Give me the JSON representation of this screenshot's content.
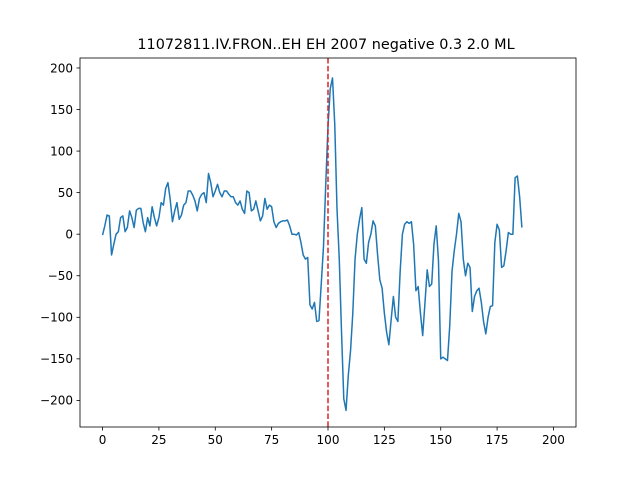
{
  "chart_data": {
    "type": "line",
    "title": "11072811.IV.FRON..EH EH 2007 negative 0.3 2.0 ML",
    "xlabel": "",
    "ylabel": "",
    "xlim": [
      -10,
      210
    ],
    "ylim": [
      -232,
      212
    ],
    "xticks": [
      0,
      25,
      50,
      75,
      100,
      125,
      150,
      175,
      200
    ],
    "yticks": [
      -200,
      -150,
      -100,
      -50,
      0,
      50,
      100,
      150,
      200
    ],
    "grid": false,
    "series_color": "#1f77b4",
    "marker": {
      "x": 100,
      "style": "dashed",
      "color": "#d62728"
    },
    "series": [
      {
        "values": [
          -1,
          10,
          23,
          22,
          -25,
          -12,
          0,
          3,
          20,
          22,
          3,
          8,
          28,
          20,
          8,
          29,
          31,
          31,
          14,
          3,
          20,
          10,
          33,
          20,
          10,
          20,
          38,
          35,
          55,
          62,
          42,
          15,
          28,
          38,
          18,
          23,
          35,
          38,
          52,
          52,
          47,
          40,
          28,
          43,
          48,
          50,
          38,
          73,
          62,
          45,
          52,
          60,
          50,
          45,
          52,
          52,
          48,
          45,
          45,
          38,
          35,
          40,
          30,
          25,
          52,
          50,
          28,
          30,
          40,
          28,
          16,
          22,
          43,
          30,
          35,
          33,
          15,
          8,
          13,
          15,
          16,
          16,
          17,
          10,
          0,
          0,
          -1,
          2,
          -10,
          -25,
          -30,
          -28,
          -85,
          -90,
          -82,
          -105,
          -104,
          -60,
          -15,
          60,
          130,
          175,
          188,
          132,
          30,
          -30,
          -118,
          -198,
          -212,
          -170,
          -140,
          -95,
          -30,
          0,
          18,
          32,
          -30,
          -35,
          -10,
          0,
          16,
          10,
          -25,
          -55,
          -65,
          -95,
          -118,
          -133,
          -103,
          -75,
          -100,
          -105,
          -45,
          0,
          12,
          15,
          13,
          15,
          -13,
          -68,
          -63,
          -95,
          -122,
          -83,
          -43,
          -63,
          -60,
          -12,
          10,
          -32,
          -150,
          -148,
          -150,
          -152,
          -110,
          -45,
          -20,
          0,
          25,
          15,
          -30,
          -50,
          -35,
          -40,
          -93,
          -75,
          -68,
          -65,
          -82,
          -105,
          -120,
          -100,
          -87,
          -86,
          -10,
          12,
          5,
          -40,
          -38,
          -20,
          2,
          0,
          0,
          68,
          70,
          45,
          8
        ]
      }
    ]
  }
}
